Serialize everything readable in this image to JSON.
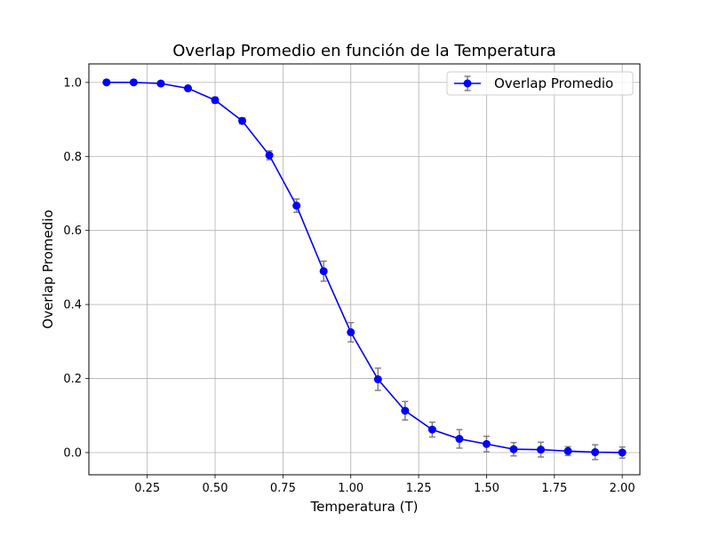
{
  "chart_data": {
    "type": "line",
    "title": "Overlap Promedio en función de la Temperatura",
    "xlabel": "Temperatura (T)",
    "ylabel": "Overlap Promedio",
    "xlim": [
      0.035,
      2.065
    ],
    "ylim": [
      -0.06,
      1.05
    ],
    "x_ticks": [
      0.25,
      0.5,
      0.75,
      1.0,
      1.25,
      1.5,
      1.75,
      2.0
    ],
    "x_tick_labels": [
      "0.25",
      "0.50",
      "0.75",
      "1.00",
      "1.25",
      "1.50",
      "1.75",
      "2.00"
    ],
    "y_ticks": [
      0.0,
      0.2,
      0.4,
      0.6,
      0.8,
      1.0
    ],
    "y_tick_labels": [
      "0.0",
      "0.2",
      "0.4",
      "0.6",
      "0.8",
      "1.0"
    ],
    "grid": true,
    "legend_position": "top-right",
    "series": [
      {
        "name": "Overlap Promedio",
        "color": "#0000ff",
        "errorbar_color": "#808080",
        "marker": "circle",
        "x": [
          0.1,
          0.2,
          0.3,
          0.4,
          0.5,
          0.6,
          0.7,
          0.8,
          0.9,
          1.0,
          1.1,
          1.2,
          1.3,
          1.4,
          1.5,
          1.6,
          1.7,
          1.8,
          1.9,
          2.0
        ],
        "y": [
          1.0,
          1.0,
          0.997,
          0.984,
          0.952,
          0.896,
          0.803,
          0.667,
          0.49,
          0.325,
          0.198,
          0.113,
          0.062,
          0.037,
          0.023,
          0.009,
          0.008,
          0.004,
          0.001,
          0.0
        ],
        "yerr": [
          0.0,
          0.001,
          0.003,
          0.006,
          0.008,
          0.008,
          0.012,
          0.018,
          0.027,
          0.026,
          0.03,
          0.025,
          0.02,
          0.025,
          0.021,
          0.018,
          0.02,
          0.012,
          0.02,
          0.015
        ]
      }
    ]
  }
}
